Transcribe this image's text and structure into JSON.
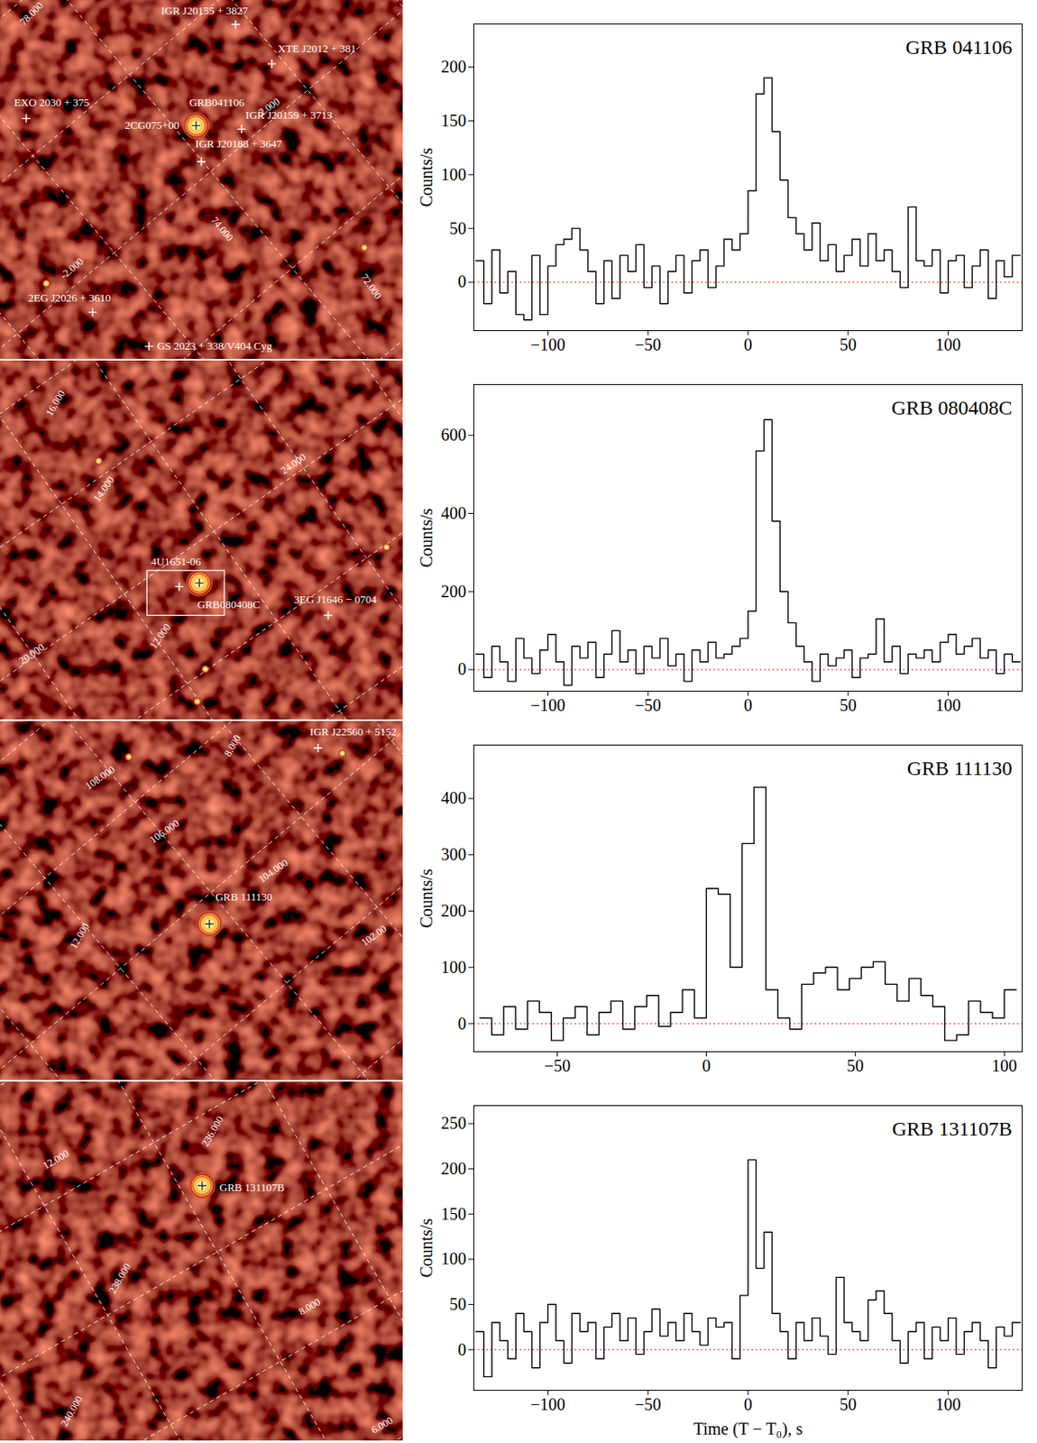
{
  "chart_data": [
    {
      "type": "histogram",
      "title": "GRB 041106",
      "y_label": "Counts/s",
      "color": "#000000",
      "baseline": 0,
      "xlim": [
        -137,
        137
      ],
      "xticks": [
        -100,
        -50,
        0,
        50,
        100
      ],
      "ylim": [
        -45,
        240
      ],
      "yticks": [
        0,
        50,
        100,
        150,
        200
      ],
      "bins": [
        -136,
        -132,
        -128,
        -124,
        -120,
        -116,
        -112,
        -108,
        -104,
        -100,
        -96,
        -92,
        -88,
        -84,
        -80,
        -76,
        -72,
        -68,
        -64,
        -60,
        -56,
        -52,
        -48,
        -44,
        -40,
        -36,
        -32,
        -28,
        -24,
        -20,
        -16,
        -12,
        -8,
        -4,
        0,
        4,
        8,
        12,
        16,
        20,
        24,
        28,
        32,
        36,
        40,
        44,
        48,
        52,
        56,
        60,
        64,
        68,
        72,
        76,
        80,
        84,
        88,
        92,
        96,
        100,
        104,
        108,
        112,
        116,
        120,
        124,
        128,
        132,
        136
      ],
      "values": [
        20,
        -20,
        30,
        -10,
        10,
        -30,
        -35,
        25,
        -30,
        15,
        35,
        40,
        50,
        30,
        10,
        -20,
        20,
        -15,
        25,
        10,
        35,
        -5,
        15,
        -20,
        10,
        25,
        -10,
        20,
        30,
        -5,
        15,
        40,
        30,
        45,
        85,
        175,
        190,
        140,
        95,
        60,
        45,
        30,
        55,
        20,
        35,
        10,
        25,
        40,
        15,
        45,
        20,
        30,
        10,
        -5,
        70,
        20,
        15,
        30,
        -10,
        20,
        25,
        -5,
        15,
        30,
        -15,
        20,
        5,
        25
      ]
    },
    {
      "type": "histogram",
      "title": "GRB 080408C",
      "y_label": "Counts/s",
      "color": "#000000",
      "baseline": 0,
      "xlim": [
        -137,
        137
      ],
      "xticks": [
        -100,
        -50,
        0,
        50,
        100
      ],
      "ylim": [
        -55,
        730
      ],
      "yticks": [
        0,
        200,
        400,
        600
      ],
      "bins": [
        -136,
        -132,
        -128,
        -124,
        -120,
        -116,
        -112,
        -108,
        -104,
        -100,
        -96,
        -92,
        -88,
        -84,
        -80,
        -76,
        -72,
        -68,
        -64,
        -60,
        -56,
        -52,
        -48,
        -44,
        -40,
        -36,
        -32,
        -28,
        -24,
        -20,
        -16,
        -12,
        -8,
        -4,
        0,
        4,
        8,
        12,
        16,
        20,
        24,
        28,
        32,
        36,
        40,
        44,
        48,
        52,
        56,
        60,
        64,
        68,
        72,
        76,
        80,
        84,
        88,
        92,
        96,
        100,
        104,
        108,
        112,
        116,
        120,
        124,
        128,
        132,
        136
      ],
      "values": [
        40,
        -20,
        60,
        20,
        -30,
        80,
        30,
        -10,
        50,
        90,
        20,
        -40,
        60,
        30,
        70,
        -20,
        40,
        100,
        20,
        50,
        -10,
        60,
        30,
        80,
        10,
        40,
        -30,
        50,
        20,
        70,
        30,
        40,
        60,
        80,
        150,
        560,
        640,
        380,
        200,
        120,
        60,
        20,
        -30,
        40,
        10,
        30,
        50,
        -20,
        30,
        40,
        130,
        20,
        60,
        -10,
        40,
        30,
        50,
        20,
        70,
        90,
        40,
        60,
        80,
        30,
        50,
        -10,
        40,
        20
      ]
    },
    {
      "type": "histogram",
      "title": "GRB 111130",
      "y_label": "Counts/s",
      "color": "#000000",
      "baseline": 0,
      "xlim": [
        -78,
        106
      ],
      "xticks": [
        -50,
        0,
        50,
        100
      ],
      "ylim": [
        -50,
        495
      ],
      "yticks": [
        0,
        100,
        200,
        300,
        400
      ],
      "bins": [
        -76,
        -72,
        -68,
        -64,
        -60,
        -56,
        -52,
        -48,
        -44,
        -40,
        -36,
        -32,
        -28,
        -24,
        -20,
        -16,
        -12,
        -8,
        -4,
        0,
        4,
        8,
        12,
        16,
        20,
        24,
        28,
        32,
        36,
        40,
        44,
        48,
        52,
        56,
        60,
        64,
        68,
        72,
        76,
        80,
        84,
        88,
        92,
        96,
        100,
        104
      ],
      "values": [
        10,
        -20,
        30,
        -10,
        40,
        20,
        -30,
        10,
        30,
        -20,
        20,
        40,
        -10,
        30,
        50,
        -5,
        20,
        60,
        10,
        240,
        230,
        100,
        320,
        420,
        60,
        10,
        -10,
        70,
        90,
        100,
        60,
        80,
        100,
        110,
        70,
        40,
        80,
        50,
        30,
        -30,
        -20,
        40,
        20,
        10,
        60
      ]
    },
    {
      "type": "histogram",
      "title": "GRB 131107B",
      "y_label": "Counts/s",
      "x_label": "Time (T − T₀), s",
      "color": "#000000",
      "baseline": 0,
      "xlim": [
        -137,
        137
      ],
      "xticks": [
        -100,
        -50,
        0,
        50,
        100
      ],
      "ylim": [
        -45,
        270
      ],
      "yticks": [
        0,
        50,
        100,
        150,
        200,
        250
      ],
      "bins": [
        -136,
        -132,
        -128,
        -124,
        -120,
        -116,
        -112,
        -108,
        -104,
        -100,
        -96,
        -92,
        -88,
        -84,
        -80,
        -76,
        -72,
        -68,
        -64,
        -60,
        -56,
        -52,
        -48,
        -44,
        -40,
        -36,
        -32,
        -28,
        -24,
        -20,
        -16,
        -12,
        -8,
        -4,
        0,
        4,
        8,
        12,
        16,
        20,
        24,
        28,
        32,
        36,
        40,
        44,
        48,
        52,
        56,
        60,
        64,
        68,
        72,
        76,
        80,
        84,
        88,
        92,
        96,
        100,
        104,
        108,
        112,
        116,
        120,
        124,
        128,
        132,
        136
      ],
      "values": [
        20,
        -30,
        30,
        10,
        -10,
        40,
        20,
        -20,
        30,
        50,
        10,
        -15,
        40,
        20,
        30,
        -10,
        25,
        40,
        10,
        35,
        -5,
        20,
        45,
        15,
        30,
        10,
        40,
        20,
        5,
        35,
        25,
        30,
        -10,
        60,
        210,
        90,
        130,
        40,
        20,
        -10,
        30,
        10,
        35,
        15,
        -5,
        80,
        30,
        20,
        10,
        55,
        65,
        40,
        10,
        -15,
        20,
        30,
        -10,
        25,
        10,
        35,
        -5,
        20,
        30,
        10,
        -20,
        25,
        15,
        30
      ]
    }
  ],
  "sky_maps": [
    {
      "type": "image",
      "burst": "GRB041106",
      "sources": [
        "IGR J20155 + 3827",
        "XTE J2012 + 381",
        "EXO 2030 + 375",
        "2CG075+00",
        "IGR J20159 + 3713",
        "IGR J20188 + 3647",
        "2EG J2026 + 3610",
        "GS 2023 + 338/V404 Cyg"
      ],
      "grid_labels": [
        "78.000",
        "2.000",
        "74.000",
        "-2.000",
        "72.000"
      ]
    },
    {
      "type": "image",
      "burst": "GRB080408C",
      "sources": [
        "4U1651-06",
        "3EG J1646 − 0704"
      ],
      "grid_labels": [
        "16.000",
        "14.000",
        "24.000",
        "12.000",
        "20.000"
      ]
    },
    {
      "type": "image",
      "burst": "GRB 111130",
      "sources": [
        "IGR J22560 + 5152"
      ],
      "grid_labels": [
        "8.000",
        "108.000",
        "106.000",
        "104.000",
        "12.000",
        "102.00"
      ]
    },
    {
      "type": "image",
      "burst": "GRB 131107B",
      "sources": [],
      "grid_labels": [
        "12.000",
        "236.000",
        "238.000",
        "8.000",
        "240.000",
        "6.000"
      ]
    }
  ]
}
